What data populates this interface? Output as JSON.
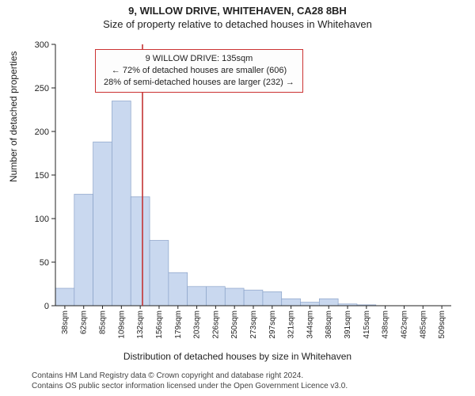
{
  "header": {
    "address": "9, WILLOW DRIVE, WHITEHAVEN, CA28 8BH",
    "subtitle": "Size of property relative to detached houses in Whitehaven"
  },
  "annotation": {
    "line1": "9 WILLOW DRIVE: 135sqm",
    "line2": "← 72% of detached houses are smaller (606)",
    "line3": "28% of semi-detached houses are larger (232) →",
    "border_color": "#c33333",
    "background_color": "#fdfdfd",
    "fontsize": 11
  },
  "axes": {
    "ylabel": "Number of detached properties",
    "xlabel": "Distribution of detached houses by size in Whitehaven",
    "ylim": [
      0,
      300
    ],
    "yticks": [
      0,
      50,
      100,
      150,
      200,
      250,
      300
    ],
    "label_fontsize": 12,
    "tick_fontsize": 11,
    "axis_color": "#222222",
    "tick_color": "#222222"
  },
  "chart": {
    "type": "histogram",
    "marker_x_sqm": 135,
    "marker_color": "#c33333",
    "bar_fill": "#c9d8ef",
    "bar_stroke": "#8aa2c8",
    "bar_stroke_width": 0.7,
    "background_color": "#ffffff",
    "categories_sqm": [
      38,
      62,
      85,
      109,
      132,
      156,
      179,
      203,
      226,
      250,
      273,
      297,
      321,
      344,
      368,
      391,
      415,
      438,
      462,
      485,
      509
    ],
    "values": [
      20,
      128,
      188,
      235,
      125,
      75,
      38,
      22,
      22,
      20,
      18,
      16,
      8,
      4,
      8,
      2,
      1,
      0,
      0,
      0,
      0
    ]
  },
  "caption": {
    "line1": "Contains HM Land Registry data © Crown copyright and database right 2024.",
    "line2": "Contains OS public sector information licensed under the Open Government Licence v3.0."
  }
}
